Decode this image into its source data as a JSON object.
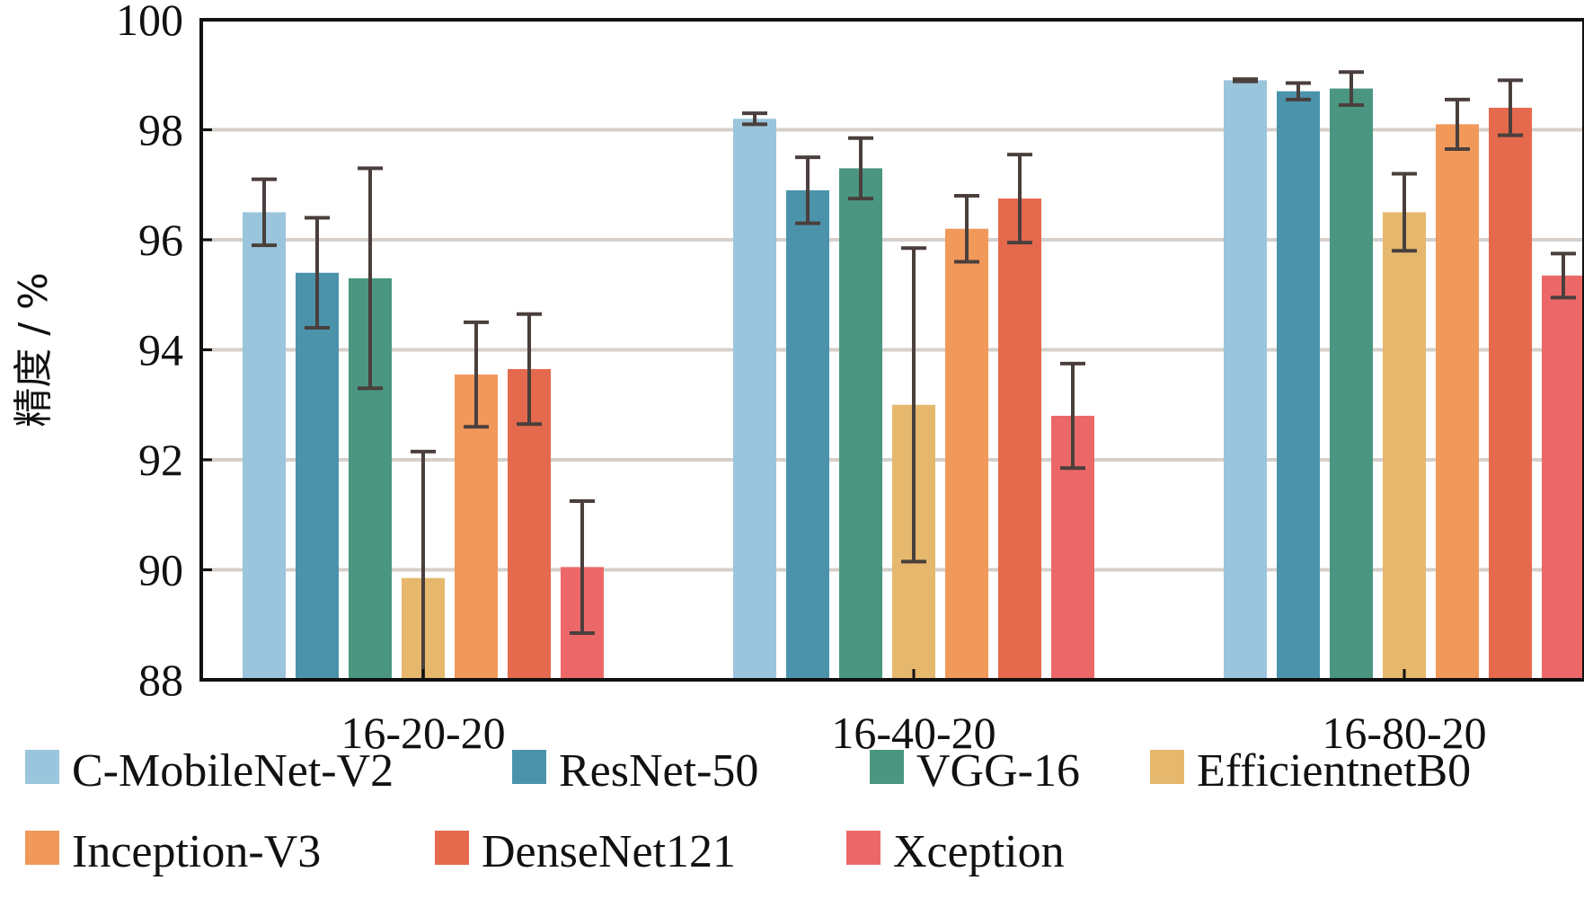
{
  "chart_data": {
    "type": "bar",
    "ylabel": "精度 / %",
    "ylim": [
      88,
      100
    ],
    "yticks": [
      88,
      90,
      92,
      94,
      96,
      98,
      100
    ],
    "grid": "horizontal",
    "legend_position": "bottom",
    "categories": [
      "16-20-20",
      "16-40-20",
      "16-80-20"
    ],
    "series": [
      {
        "name": "C-MobileNet-V2",
        "color": "#9ac5dc",
        "values": [
          96.5,
          98.2,
          98.9
        ],
        "errors": [
          0.6,
          0.1,
          0.02
        ]
      },
      {
        "name": "ResNet-50",
        "color": "#4b93ab",
        "values": [
          95.4,
          96.9,
          98.7
        ],
        "errors": [
          1.0,
          0.6,
          0.15
        ]
      },
      {
        "name": "VGG-16",
        "color": "#4a9680",
        "values": [
          95.3,
          97.3,
          98.75
        ],
        "errors": [
          2.0,
          0.55,
          0.3
        ]
      },
      {
        "name": "EfficientnetB0",
        "color": "#e5b86d",
        "values": [
          89.85,
          93.0,
          96.5
        ],
        "errors": [
          2.3,
          2.85,
          0.7
        ]
      },
      {
        "name": "Inception-V3",
        "color": "#f1985b",
        "values": [
          93.55,
          96.2,
          98.1
        ],
        "errors": [
          0.95,
          0.6,
          0.45
        ]
      },
      {
        "name": "DenseNet121",
        "color": "#e56a4d",
        "values": [
          93.65,
          96.75,
          98.4
        ],
        "errors": [
          1.0,
          0.8,
          0.5
        ]
      },
      {
        "name": "Xception",
        "color": "#ec6868",
        "values": [
          90.05,
          92.8,
          95.35
        ],
        "errors": [
          1.2,
          0.95,
          0.4
        ]
      }
    ]
  }
}
